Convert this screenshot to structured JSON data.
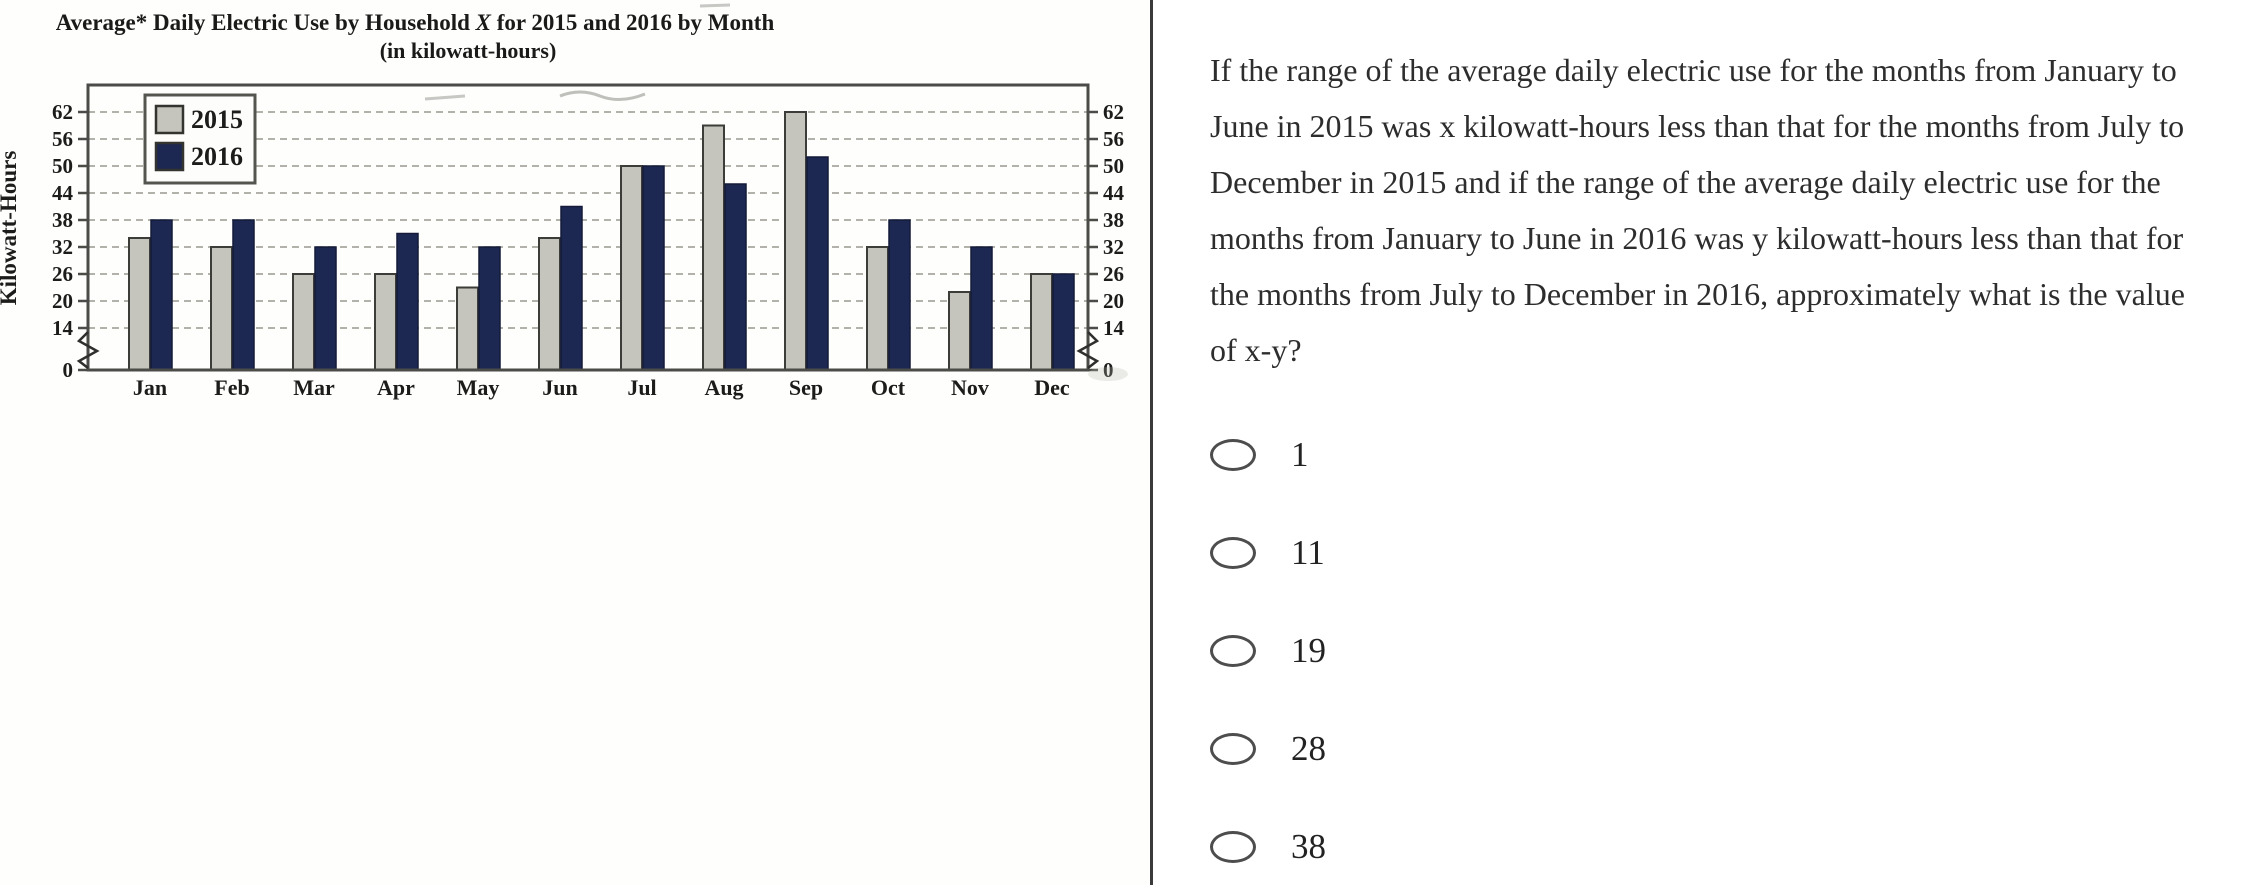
{
  "chart_data": {
    "type": "bar",
    "title": "Average* Daily Electric Use by Household X for 2015 and 2016 by Month",
    "subtitle": "(in kilowatt-hours)",
    "ylabel": "Kilowatt-Hours",
    "categories": [
      "Jan",
      "Feb",
      "Mar",
      "Apr",
      "May",
      "Jun",
      "Jul",
      "Aug",
      "Sep",
      "Oct",
      "Nov",
      "Dec"
    ],
    "series": [
      {
        "name": "2015",
        "color": "#c5c5bd",
        "values": [
          34,
          32,
          26,
          26,
          23,
          34,
          50,
          59,
          62,
          32,
          22,
          26
        ]
      },
      {
        "name": "2016",
        "color": "#1d2852",
        "values": [
          38,
          38,
          32,
          35,
          32,
          41,
          50,
          46,
          52,
          38,
          32,
          26
        ]
      }
    ],
    "yticks": [
      0,
      14,
      20,
      26,
      32,
      38,
      44,
      50,
      56,
      62
    ],
    "ylim": [
      0,
      66
    ],
    "axis_break_between": [
      0,
      14
    ],
    "grid": true,
    "legend_position": "top-left",
    "colors": {
      "bar_2015": "#c5c5bd",
      "bar_2016": "#1d2852",
      "plot_border": "#4b4b48",
      "gridline": "#99998f",
      "axis_text": "#1c1c1a"
    }
  },
  "question": {
    "text": "If the range of the average daily electric use for the months from January to June in 2015 was x kilowatt-hours less than that for the months from July to December in 2015 and if the range of the average daily electric use for the months from January to June in 2016 was y kilowatt-hours less than that for the months from July to December in 2016, approximately what is the value of x-y?",
    "options": [
      "1",
      "11",
      "19",
      "28",
      "38"
    ]
  }
}
